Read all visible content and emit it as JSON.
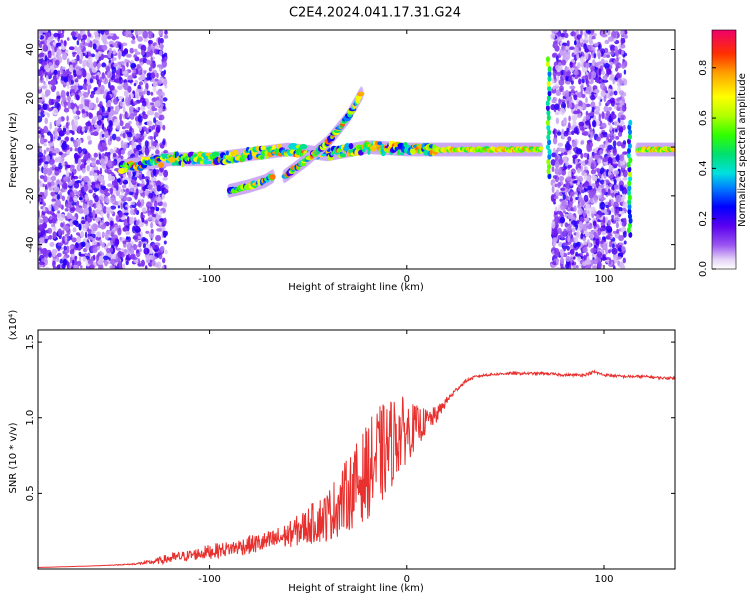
{
  "title": "C2E4.2024.041.17.31.G24",
  "chart_data": [
    {
      "type": "heatmap",
      "xlabel": "Height of straight line (km)",
      "ylabel": "Frequency (Hz)",
      "xlim": [
        -187,
        136
      ],
      "ylim": [
        -50,
        48
      ],
      "xticks": [
        -100,
        0,
        100
      ],
      "yticks": [
        40,
        20,
        0,
        -20,
        -40
      ],
      "colorbar": {
        "label": "Normalized spectral amplitude",
        "range": [
          0.0,
          0.95
        ],
        "ticks": [
          0.0,
          0.2,
          0.4,
          0.6,
          0.8
        ]
      },
      "features": [
        {
          "type": "noise-band",
          "x_range": [
            -187,
            -122
          ],
          "freq_range": [
            -50,
            48
          ]
        },
        {
          "type": "noise-band",
          "x_range": [
            74,
            111
          ],
          "freq_range": [
            -50,
            48
          ]
        },
        {
          "type": "ridge",
          "x": [
            -145,
            -120,
            -100,
            -80,
            -60,
            -40,
            -20,
            0,
            20,
            40,
            68
          ],
          "freq": [
            -8,
            -5,
            -5,
            -3,
            -1,
            -3,
            0,
            -1,
            -1,
            -1,
            -1
          ]
        },
        {
          "type": "branch",
          "x": [
            -62,
            -52,
            -40,
            -30,
            -23
          ],
          "freq": [
            -12,
            -6,
            2,
            12,
            22
          ]
        },
        {
          "type": "branch",
          "x": [
            -90,
            -80,
            -72,
            -68
          ],
          "freq": [
            -18,
            -16,
            -14,
            -12
          ]
        },
        {
          "type": "spike",
          "x": 72,
          "freq_range": [
            -12,
            36
          ]
        },
        {
          "type": "spike",
          "x": 113,
          "freq_range": [
            -36,
            10
          ]
        },
        {
          "type": "ridge",
          "x": [
            117,
            136
          ],
          "freq": [
            -1,
            -1
          ]
        }
      ]
    },
    {
      "type": "line",
      "xlabel": "Height of straight line (km)",
      "ylabel": "SNR (10 * v/v)",
      "y_scale_label": "(x10⁴)",
      "xlim": [
        -187,
        136
      ],
      "ylim": [
        0,
        1.58
      ],
      "xticks": [
        -100,
        0,
        100
      ],
      "yticks": [
        0.5,
        1.0,
        1.5
      ],
      "series": [
        {
          "color": "#e8312f",
          "x": [
            -187,
            -160,
            -140,
            -130,
            -120,
            -110,
            -100,
            -90,
            -80,
            -70,
            -60,
            -50,
            -40,
            -30,
            -20,
            -15,
            -10,
            -5,
            0,
            5,
            10,
            15,
            20,
            25,
            30,
            35,
            40,
            50,
            60,
            70,
            80,
            90,
            95,
            100,
            110,
            120,
            130,
            136
          ],
          "y": [
            0.01,
            0.02,
            0.03,
            0.04,
            0.06,
            0.08,
            0.1,
            0.12,
            0.14,
            0.16,
            0.2,
            0.25,
            0.3,
            0.42,
            0.55,
            0.62,
            0.7,
            0.8,
            0.85,
            0.9,
            0.95,
            1.0,
            1.1,
            1.18,
            1.24,
            1.27,
            1.28,
            1.29,
            1.29,
            1.29,
            1.28,
            1.28,
            1.3,
            1.28,
            1.27,
            1.27,
            1.26,
            1.26
          ],
          "noise_amplitude": [
            0,
            0,
            0.005,
            0.02,
            0.05,
            0.05,
            0.07,
            0.07,
            0.09,
            0.1,
            0.12,
            0.18,
            0.25,
            0.35,
            0.45,
            0.5,
            0.45,
            0.4,
            0.3,
            0.2,
            0.12,
            0.08,
            0.04,
            0.02,
            0.015,
            0.012,
            0.012,
            0.012,
            0.012,
            0.012,
            0.012,
            0.012,
            0.015,
            0.012,
            0.012,
            0.012,
            0.012,
            0.012
          ]
        }
      ]
    }
  ]
}
